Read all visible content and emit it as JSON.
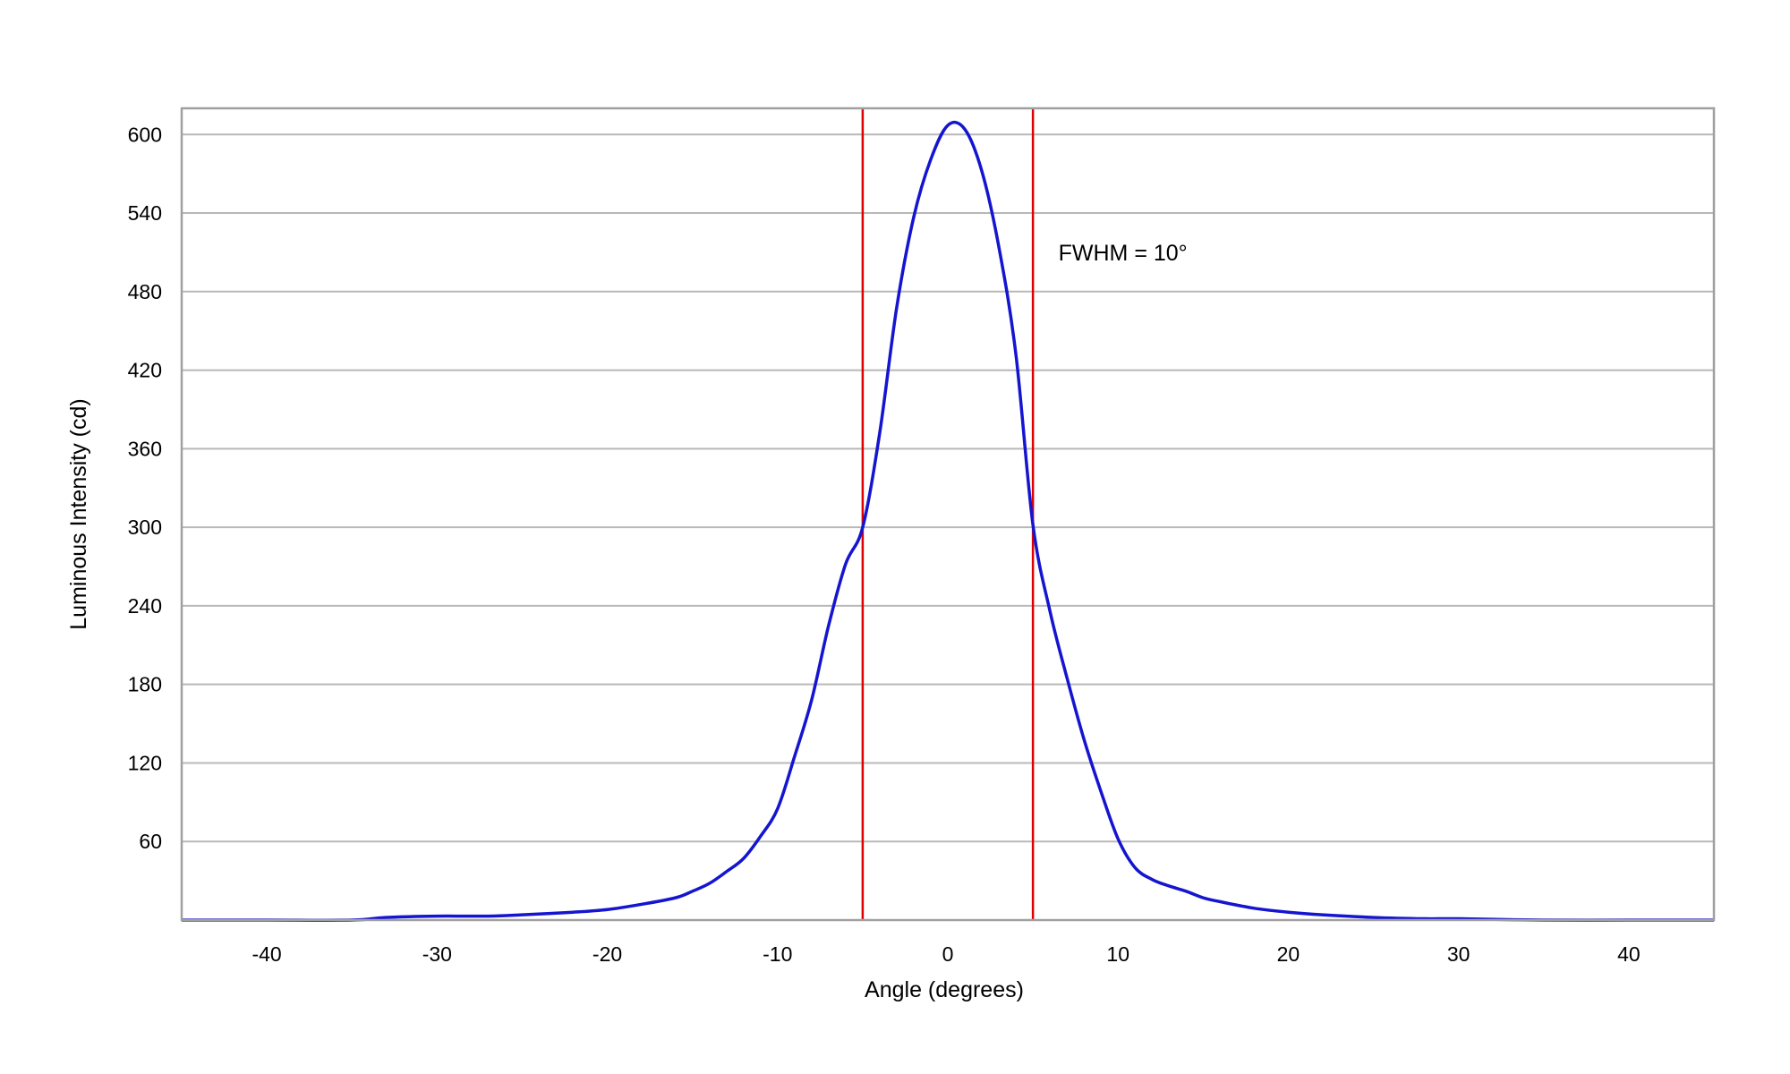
{
  "chart_data": {
    "type": "line",
    "title": "",
    "xlabel": "Angle (degrees)",
    "ylabel": "Luminous Intensity (cd)",
    "xlim": [
      -45,
      45
    ],
    "ylim": [
      0,
      620
    ],
    "grid": {
      "horizontal": true,
      "vertical": false
    },
    "legend": "none",
    "x_ticks": [
      -40,
      -30,
      -20,
      -10,
      0,
      10,
      20,
      30,
      40
    ],
    "y_ticks": [
      60,
      120,
      180,
      240,
      300,
      360,
      420,
      480,
      540,
      600
    ],
    "x_tick_labels": [
      "-40",
      "-30",
      "-20",
      "-10",
      "0",
      "10",
      "20",
      "30",
      "40"
    ],
    "y_tick_labels": [
      "60",
      "120",
      "180",
      "240",
      "300",
      "360",
      "420",
      "480",
      "540",
      "600"
    ],
    "series": [
      {
        "color": "#1515d0",
        "x": [
          -45,
          -40,
          -35,
          -33,
          -30,
          -27,
          -25,
          -22,
          -20,
          -18,
          -16,
          -15,
          -14,
          -13,
          -12,
          -11,
          -10,
          -9,
          -8,
          -7,
          -6,
          -5,
          -4,
          -3,
          -2,
          -1,
          0,
          1,
          2,
          3,
          4,
          5,
          6,
          7,
          8,
          9,
          10,
          11,
          12,
          13,
          14,
          15,
          16,
          18,
          20,
          22,
          25,
          28,
          30,
          35,
          40,
          45
        ],
        "y": [
          0,
          0,
          0,
          2,
          3,
          3,
          4,
          6,
          8,
          12,
          17,
          22,
          28,
          37,
          47,
          64,
          85,
          125,
          168,
          225,
          272,
          300,
          372,
          468,
          537,
          581,
          607,
          604,
          572,
          514,
          432,
          302,
          236,
          185,
          138,
          98,
          62,
          40,
          31,
          26,
          22,
          17,
          14,
          9,
          6,
          4,
          2,
          1,
          1,
          0,
          0,
          0
        ]
      }
    ],
    "vertical_markers": [
      {
        "x": -5,
        "color": "#e00000"
      },
      {
        "x": 5,
        "color": "#e00000"
      }
    ],
    "annotations": [
      {
        "text": "FWHM = 10°",
        "x": 6.5,
        "y": 510
      }
    ],
    "colors": {
      "grid": "#b8b8b8",
      "frame": "#a0a0a0"
    }
  }
}
